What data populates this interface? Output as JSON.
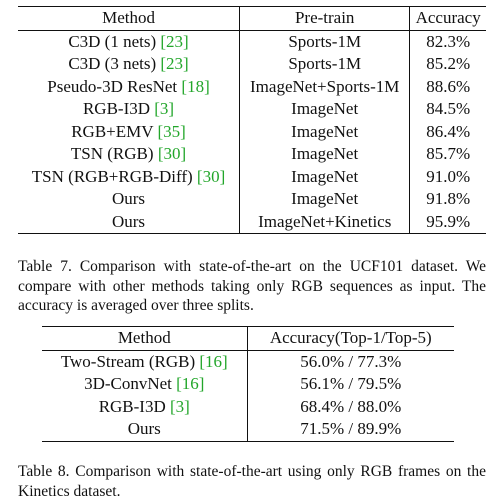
{
  "table7": {
    "headers": {
      "method": "Method",
      "pretrain": "Pre-train",
      "accuracy": "Accuracy"
    },
    "rows": [
      {
        "method": "C3D (1 nets)",
        "ref": "[23]",
        "pretrain": "Sports-1M",
        "accuracy": "82.3%"
      },
      {
        "method": "C3D (3 nets)",
        "ref": "[23]",
        "pretrain": "Sports-1M",
        "accuracy": "85.2%"
      },
      {
        "method": "Pseudo-3D ResNet",
        "ref": "[18]",
        "pretrain": "ImageNet+Sports-1M",
        "accuracy": "88.6%"
      },
      {
        "method": "RGB-I3D",
        "ref": "[3]",
        "pretrain": "ImageNet",
        "accuracy": "84.5%"
      },
      {
        "method": "RGB+EMV",
        "ref": "[35]",
        "pretrain": "ImageNet",
        "accuracy": "86.4%"
      },
      {
        "method": "TSN (RGB)",
        "ref": "[30]",
        "pretrain": "ImageNet",
        "accuracy": "85.7%"
      },
      {
        "method": "TSN (RGB+RGB-Diff)",
        "ref": "[30]",
        "pretrain": "ImageNet",
        "accuracy": "91.0%"
      },
      {
        "method": "Ours",
        "ref": "",
        "pretrain": "ImageNet",
        "accuracy": "91.8%"
      },
      {
        "method": "Ours",
        "ref": "",
        "pretrain": "ImageNet+Kinetics",
        "accuracy": "95.9%"
      }
    ],
    "caption": "Table 7. Comparison with state-of-the-art on the UCF101 dataset. We compare with other methods taking only RGB sequences as input. The accuracy is averaged over three splits."
  },
  "table8": {
    "headers": {
      "method": "Method",
      "accuracy": "Accuracy(Top-1/Top-5)"
    },
    "rows": [
      {
        "method": "Two-Stream (RGB)",
        "ref": "[16]",
        "accuracy": "56.0% / 77.3%"
      },
      {
        "method": "3D-ConvNet",
        "ref": "[16]",
        "accuracy": "56.1% / 79.5%"
      },
      {
        "method": "RGB-I3D",
        "ref": "[3]",
        "accuracy": "68.4% / 88.0%"
      },
      {
        "method": "Ours",
        "ref": "",
        "accuracy": "71.5% / 89.9%"
      }
    ],
    "caption": "Table 8. Comparison with state-of-the-art using only RGB frames on the Kinetics dataset."
  },
  "colors": {
    "citation_green": "#22a62a",
    "text": "#111111"
  }
}
